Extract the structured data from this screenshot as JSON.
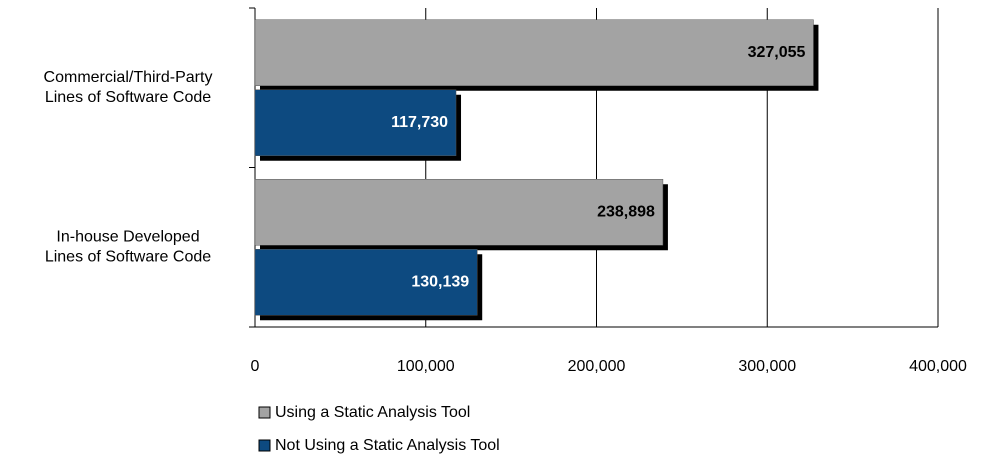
{
  "chart_data": {
    "type": "hbar",
    "categories": [
      "Commercial/Third-Party\nLines of Software Code",
      "In-house Developed\nLines of Software Code"
    ],
    "series": [
      {
        "name": "Using a Static Analysis Tool",
        "color": "#a3a3a3",
        "values": [
          327055,
          238898
        ],
        "value_labels": [
          "327,055",
          "238,898"
        ]
      },
      {
        "name": "Not Using a Static Analysis Tool",
        "color": "#0d4a80",
        "values": [
          117730,
          130139
        ],
        "value_labels": [
          "117,730",
          "130,139"
        ]
      }
    ],
    "xlim": [
      0,
      400000
    ],
    "xticks": [
      0,
      {
        "value": 100000,
        "label": "100,000"
      },
      {
        "value": 200000,
        "label": "200,000"
      },
      {
        "value": 300000,
        "label": "300,000"
      },
      {
        "value": 400000,
        "label": "400,000"
      }
    ],
    "grid": true
  }
}
